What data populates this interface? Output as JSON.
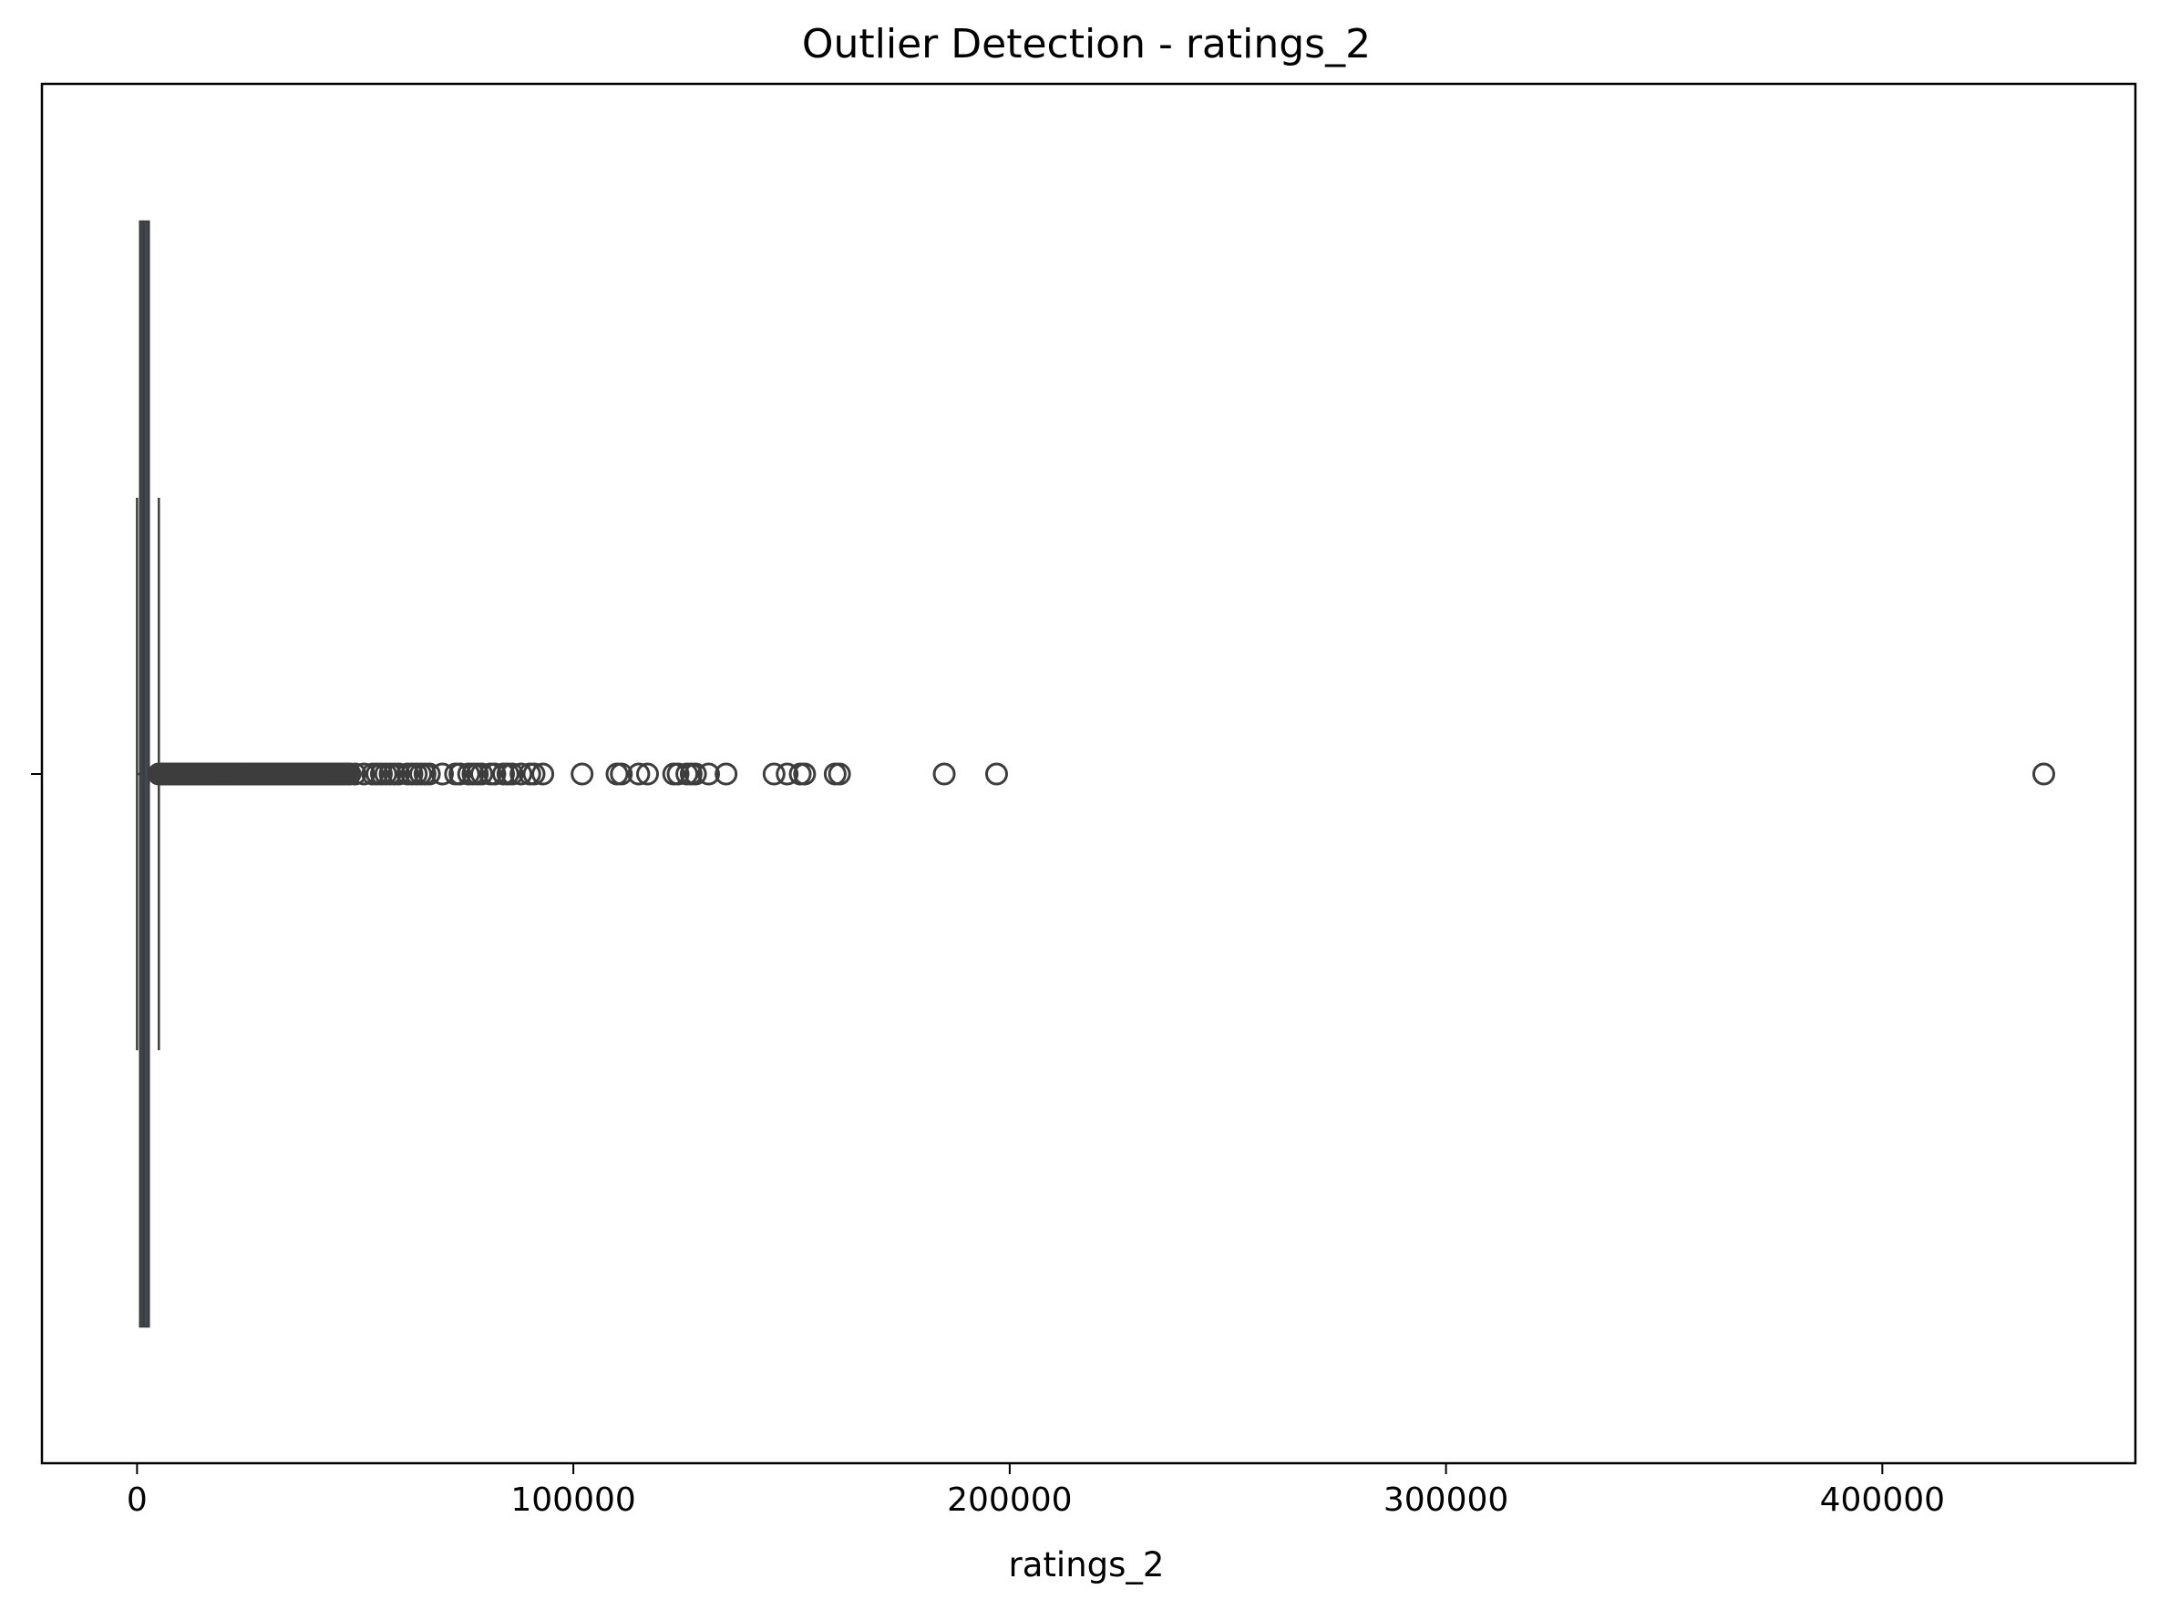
{
  "chart_data": {
    "type": "boxplot",
    "title": "Outlier Detection - ratings_2",
    "xlabel": "ratings_2",
    "ylabel": "",
    "orientation": "horizontal",
    "xlim": [
      -21800,
      458000
    ],
    "xticks": [
      0,
      100000,
      200000,
      300000,
      400000
    ],
    "xtick_labels": [
      "0",
      "100000",
      "200000",
      "300000",
      "400000"
    ],
    "grid": false,
    "box": {
      "whisker_low": 0,
      "q1": 700,
      "median": 1500,
      "q3": 2700,
      "whisker_high": 5000
    },
    "outliers_dense_range": [
      5000,
      49000
    ],
    "outliers": [
      50000,
      52000,
      54000,
      55000,
      56000,
      57000,
      58000,
      59000,
      60000,
      62000,
      63000,
      64000,
      65000,
      66000,
      67000,
      70000,
      73000,
      74000,
      76000,
      77000,
      78000,
      79000,
      81000,
      82000,
      84000,
      85000,
      86000,
      88000,
      90000,
      91000,
      93000,
      102000,
      110000,
      111000,
      115000,
      117000,
      123000,
      124000,
      126000,
      127000,
      128000,
      131000,
      135000,
      146000,
      149000,
      152000,
      153000,
      160000,
      161000,
      185000,
      197000,
      437000
    ],
    "colors": {
      "box_fill": "#3a4a5a",
      "line": "#3d3d3d",
      "outlier_edge": "#3d3d3d"
    }
  }
}
